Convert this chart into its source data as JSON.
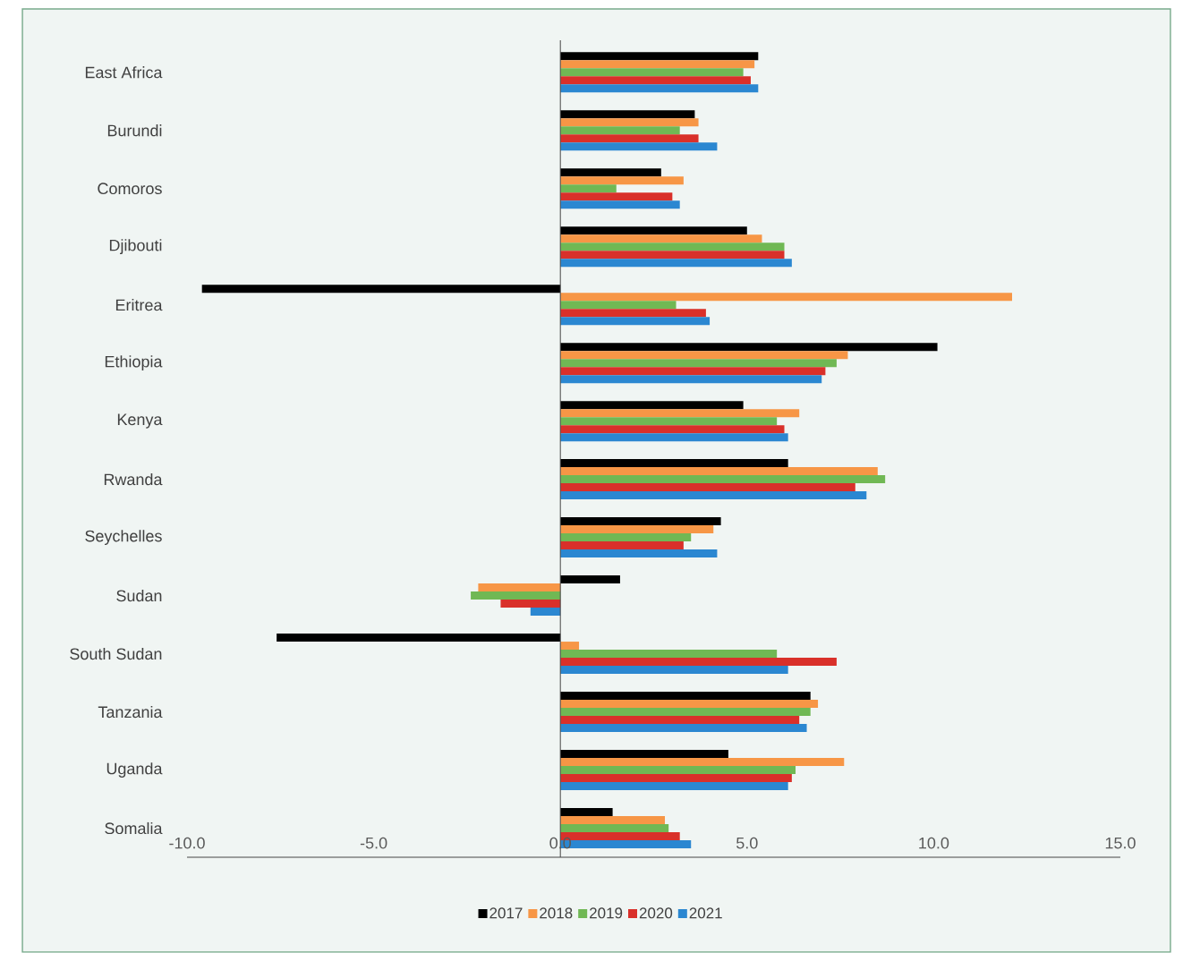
{
  "chart_data": {
    "type": "bar",
    "orientation": "horizontal",
    "categories": [
      "East Africa",
      "Burundi",
      "Comoros",
      "Djibouti",
      "Eritrea",
      "Ethiopia",
      "Kenya",
      "Rwanda",
      "Seychelles",
      "Sudan",
      "South Sudan",
      "Tanzania",
      "Uganda",
      "Somalia"
    ],
    "series": [
      {
        "name": "2017",
        "color": "#000000",
        "values": [
          5.3,
          3.6,
          2.7,
          5.0,
          -9.6,
          10.1,
          4.9,
          6.1,
          4.3,
          1.6,
          -7.6,
          6.7,
          4.5,
          1.4
        ]
      },
      {
        "name": "2018",
        "color": "#f79646",
        "values": [
          5.2,
          3.7,
          3.3,
          5.4,
          12.1,
          7.7,
          6.4,
          8.5,
          4.1,
          -2.2,
          0.5,
          6.9,
          7.6,
          2.8
        ]
      },
      {
        "name": "2019",
        "color": "#70b854",
        "values": [
          4.9,
          3.2,
          1.5,
          6.0,
          3.1,
          7.4,
          5.8,
          8.7,
          3.5,
          -2.4,
          5.8,
          6.7,
          6.3,
          2.9
        ]
      },
      {
        "name": "2020",
        "color": "#d9302a",
        "values": [
          5.1,
          3.7,
          3.0,
          6.0,
          3.9,
          7.1,
          6.0,
          7.9,
          3.3,
          -1.6,
          7.4,
          6.4,
          6.2,
          3.2
        ]
      },
      {
        "name": "2021",
        "color": "#2b87d1",
        "values": [
          5.3,
          4.2,
          3.2,
          6.2,
          4.0,
          7.0,
          6.1,
          8.2,
          4.2,
          -0.8,
          6.1,
          6.6,
          6.1,
          3.5
        ]
      }
    ],
    "xlim": [
      -10,
      15
    ],
    "xticks": [
      {
        "value": -10,
        "label": "-10.0"
      },
      {
        "value": -5,
        "label": "-5.0"
      },
      {
        "value": 0,
        "label": "0.0"
      },
      {
        "value": 5,
        "label": "5.0"
      },
      {
        "value": 10,
        "label": "10.0"
      },
      {
        "value": 15,
        "label": "15.0"
      }
    ],
    "legend": "bottom"
  }
}
